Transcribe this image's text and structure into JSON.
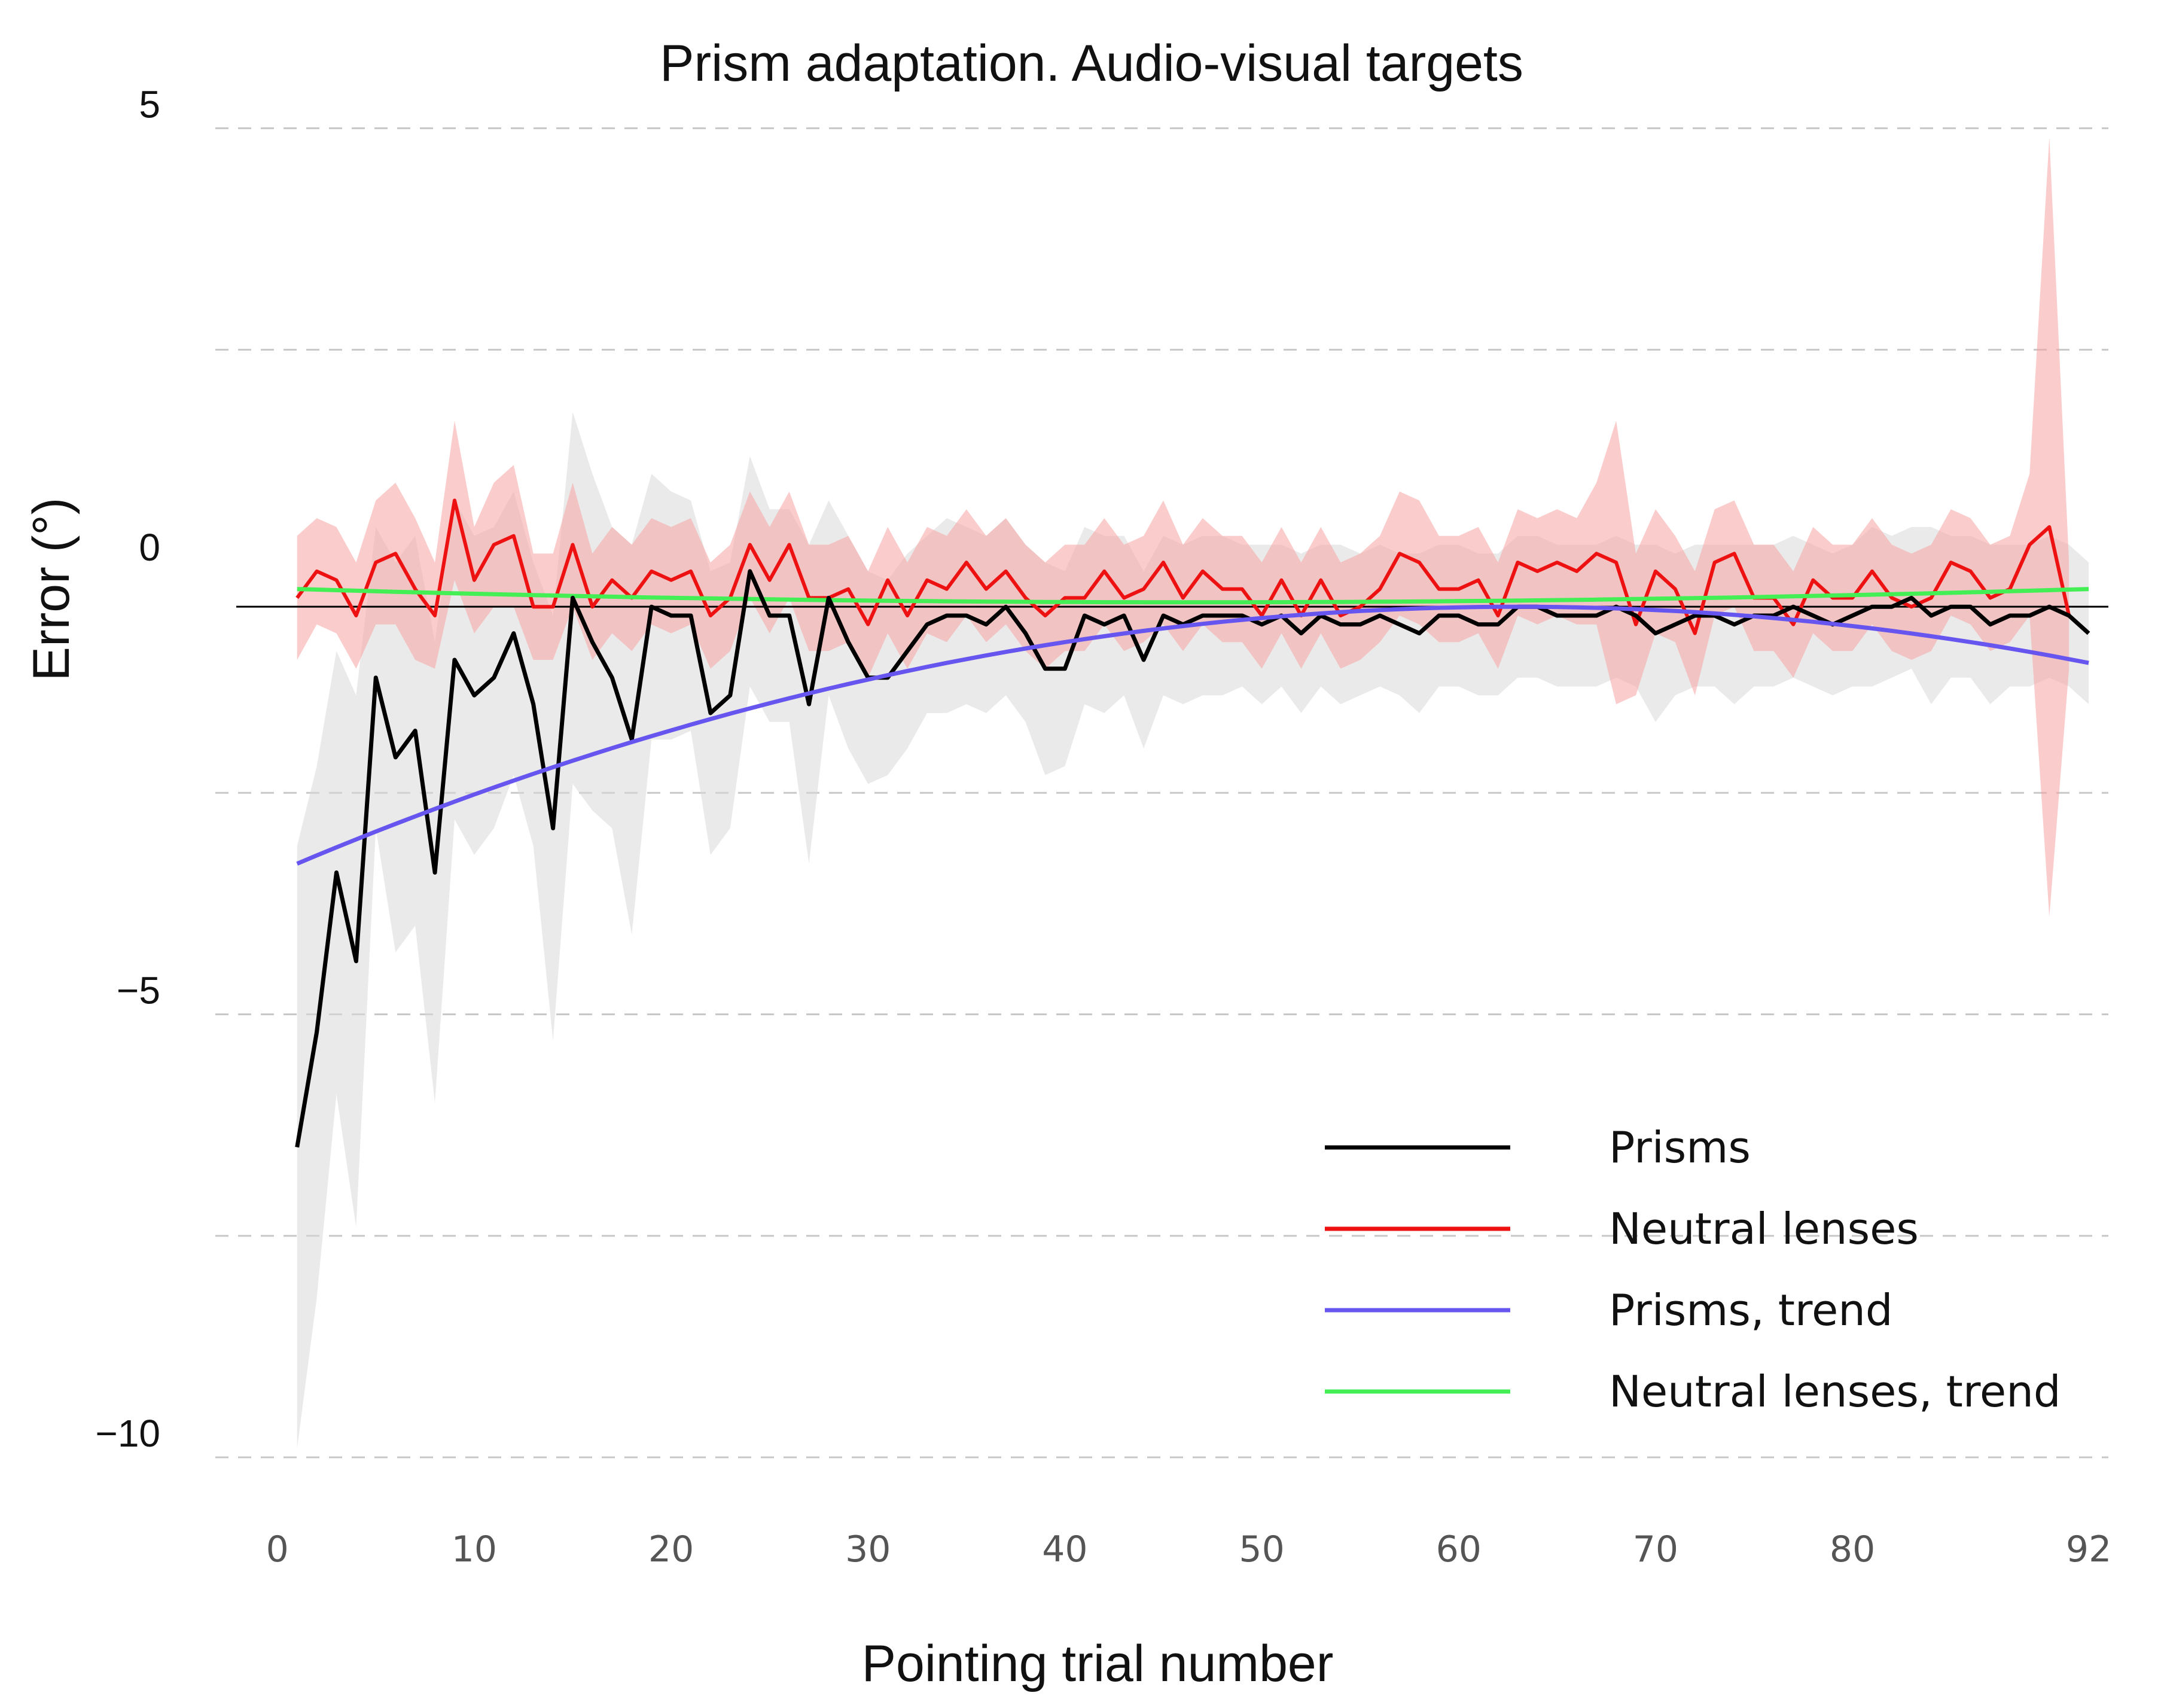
{
  "chart_data": {
    "type": "line",
    "title": "Prism adaptation. Audio-visual targets",
    "xlabel": "Pointing trial number",
    "ylabel": "Error (°)",
    "xlim": [
      -3,
      93
    ],
    "ylim": [
      -10.5,
      5.3
    ],
    "x_ticks": [
      0,
      10,
      20,
      30,
      40,
      50,
      60,
      70,
      80,
      92
    ],
    "y_ticks": [
      5,
      0,
      -5,
      -10
    ],
    "y_tick_labels": [
      "5",
      "0",
      "−5",
      "−10"
    ],
    "grid_lines_y": [
      5,
      2.5,
      -2.5,
      -5,
      -7.5,
      -10
    ],
    "reference_line_y": -0.4,
    "legend_position": "bottom-right",
    "legend": [
      "Prisms",
      "Neutral lenses",
      "Prisms, trend",
      "Neutral lenses, trend"
    ],
    "colors": {
      "prisms": "#000000",
      "neutral": "#ee1111",
      "prisms_trend": "#6655ee",
      "neutral_trend": "#44ee55",
      "prisms_band": "#d9d9d9",
      "neutral_band": "#f7a3a3",
      "grid": "#c8c8c8"
    },
    "trend_models": {
      "prisms_trend": {
        "x_start": 1,
        "x_end": 92,
        "vertex_x": 63,
        "vertex_y": -0.4,
        "y_at_start": -3.3
      },
      "neutral_trend": {
        "x_start": 1,
        "x_end": 92,
        "y_start": -0.2,
        "y_end": -0.2,
        "sag": 0.15
      }
    },
    "series": [
      {
        "name": "Prisms",
        "x_start": 1,
        "values": [
          -6.5,
          -5.2,
          -3.4,
          -4.4,
          -1.2,
          -2.1,
          -1.8,
          -3.4,
          -1.0,
          -1.4,
          -1.2,
          -0.7,
          -1.5,
          -2.9,
          -0.3,
          -0.8,
          -1.2,
          -1.9,
          -0.4,
          -0.5,
          -0.5,
          -1.6,
          -1.4,
          0.0,
          -0.5,
          -0.5,
          -1.5,
          -0.3,
          -0.8,
          -1.2,
          -1.2,
          -0.9,
          -0.6,
          -0.5,
          -0.5,
          -0.6,
          -0.4,
          -0.7,
          -1.1,
          -1.1,
          -0.5,
          -0.6,
          -0.5,
          -1.0,
          -0.5,
          -0.6,
          -0.5,
          -0.5,
          -0.5,
          -0.6,
          -0.5,
          -0.7,
          -0.5,
          -0.6,
          -0.6,
          -0.5,
          -0.6,
          -0.7,
          -0.5,
          -0.5,
          -0.6,
          -0.6,
          -0.4,
          -0.4,
          -0.5,
          -0.5,
          -0.5,
          -0.4,
          -0.5,
          -0.7,
          -0.6,
          -0.5,
          -0.5,
          -0.6,
          -0.5,
          -0.5,
          -0.4,
          -0.5,
          -0.6,
          -0.5,
          -0.4,
          -0.4,
          -0.3,
          -0.5,
          -0.4,
          -0.4,
          -0.6,
          -0.5,
          -0.5,
          -0.4,
          -0.5,
          -0.7
        ]
      },
      {
        "name": "Neutral lenses",
        "x_start": 1,
        "values": [
          -0.3,
          0.0,
          -0.1,
          -0.5,
          0.1,
          0.2,
          -0.2,
          -0.5,
          0.8,
          -0.1,
          0.3,
          0.4,
          -0.4,
          -0.4,
          0.3,
          -0.4,
          -0.1,
          -0.3,
          0.0,
          -0.1,
          0.0,
          -0.5,
          -0.3,
          0.3,
          -0.1,
          0.3,
          -0.3,
          -0.3,
          -0.2,
          -0.6,
          -0.1,
          -0.5,
          -0.1,
          -0.2,
          0.1,
          -0.2,
          0.0,
          -0.3,
          -0.5,
          -0.3,
          -0.3,
          0.0,
          -0.3,
          -0.2,
          0.1,
          -0.3,
          0.0,
          -0.2,
          -0.2,
          -0.5,
          -0.1,
          -0.5,
          -0.1,
          -0.5,
          -0.4,
          -0.2,
          0.2,
          0.1,
          -0.2,
          -0.2,
          -0.1,
          -0.5,
          0.1,
          0.0,
          0.1,
          0.0,
          0.2,
          0.1,
          -0.6,
          0.0,
          -0.2,
          -0.7,
          0.1,
          0.2,
          -0.3,
          -0.3,
          -0.6,
          -0.1,
          -0.3,
          -0.3,
          0.0,
          -0.3,
          -0.4,
          -0.3,
          0.1,
          0.0,
          -0.3,
          -0.2,
          0.3,
          0.5,
          -0.5
        ]
      }
    ],
    "bands": [
      {
        "name": "Prisms spread",
        "x_start": 1,
        "half_width": [
          3.4,
          3.0,
          2.5,
          3.0,
          1.7,
          2.2,
          2.2,
          2.6,
          1.8,
          1.8,
          1.7,
          1.6,
          1.6,
          2.4,
          2.1,
          1.9,
          1.7,
          2.2,
          1.5,
          1.4,
          1.3,
          1.6,
          1.5,
          1.3,
          1.2,
          1.2,
          1.8,
          1.1,
          1.2,
          1.2,
          1.1,
          1.1,
          1.0,
          1.1,
          1.0,
          1.0,
          1.0,
          1.0,
          1.2,
          1.1,
          1.0,
          1.0,
          0.9,
          1.0,
          0.9,
          0.9,
          0.9,
          0.9,
          0.8,
          0.9,
          0.8,
          0.9,
          0.8,
          0.9,
          0.8,
          0.8,
          0.8,
          0.9,
          0.8,
          0.8,
          0.8,
          0.8,
          0.8,
          0.8,
          0.8,
          0.8,
          0.8,
          0.8,
          0.8,
          1.0,
          0.8,
          0.8,
          0.8,
          0.9,
          0.8,
          0.8,
          0.8,
          0.8,
          0.8,
          0.8,
          0.9,
          0.8,
          0.8,
          1.0,
          0.8,
          0.8,
          0.9,
          0.8,
          0.8,
          0.8,
          0.8,
          0.8
        ]
      },
      {
        "name": "Neutral lenses spread",
        "x_start": 1,
        "half_width": [
          0.7,
          0.6,
          0.6,
          0.6,
          0.7,
          0.8,
          0.8,
          0.6,
          0.9,
          0.6,
          0.7,
          0.8,
          0.6,
          0.6,
          0.7,
          0.6,
          0.6,
          0.6,
          0.6,
          0.6,
          0.6,
          0.6,
          0.6,
          0.6,
          0.6,
          0.6,
          0.6,
          0.6,
          0.6,
          0.6,
          0.6,
          0.6,
          0.6,
          0.6,
          0.6,
          0.6,
          0.6,
          0.6,
          0.6,
          0.6,
          0.6,
          0.6,
          0.6,
          0.6,
          0.7,
          0.6,
          0.6,
          0.6,
          0.6,
          0.6,
          0.6,
          0.6,
          0.6,
          0.6,
          0.6,
          0.6,
          0.7,
          0.7,
          0.6,
          0.6,
          0.6,
          0.6,
          0.6,
          0.6,
          0.6,
          0.6,
          0.8,
          1.6,
          0.8,
          0.7,
          0.6,
          0.7,
          0.6,
          0.6,
          0.6,
          0.6,
          0.6,
          0.6,
          0.6,
          0.6,
          0.6,
          0.6,
          0.6,
          0.6,
          0.6,
          0.6,
          0.6,
          0.6,
          0.8,
          4.4,
          0.6
        ]
      }
    ]
  }
}
